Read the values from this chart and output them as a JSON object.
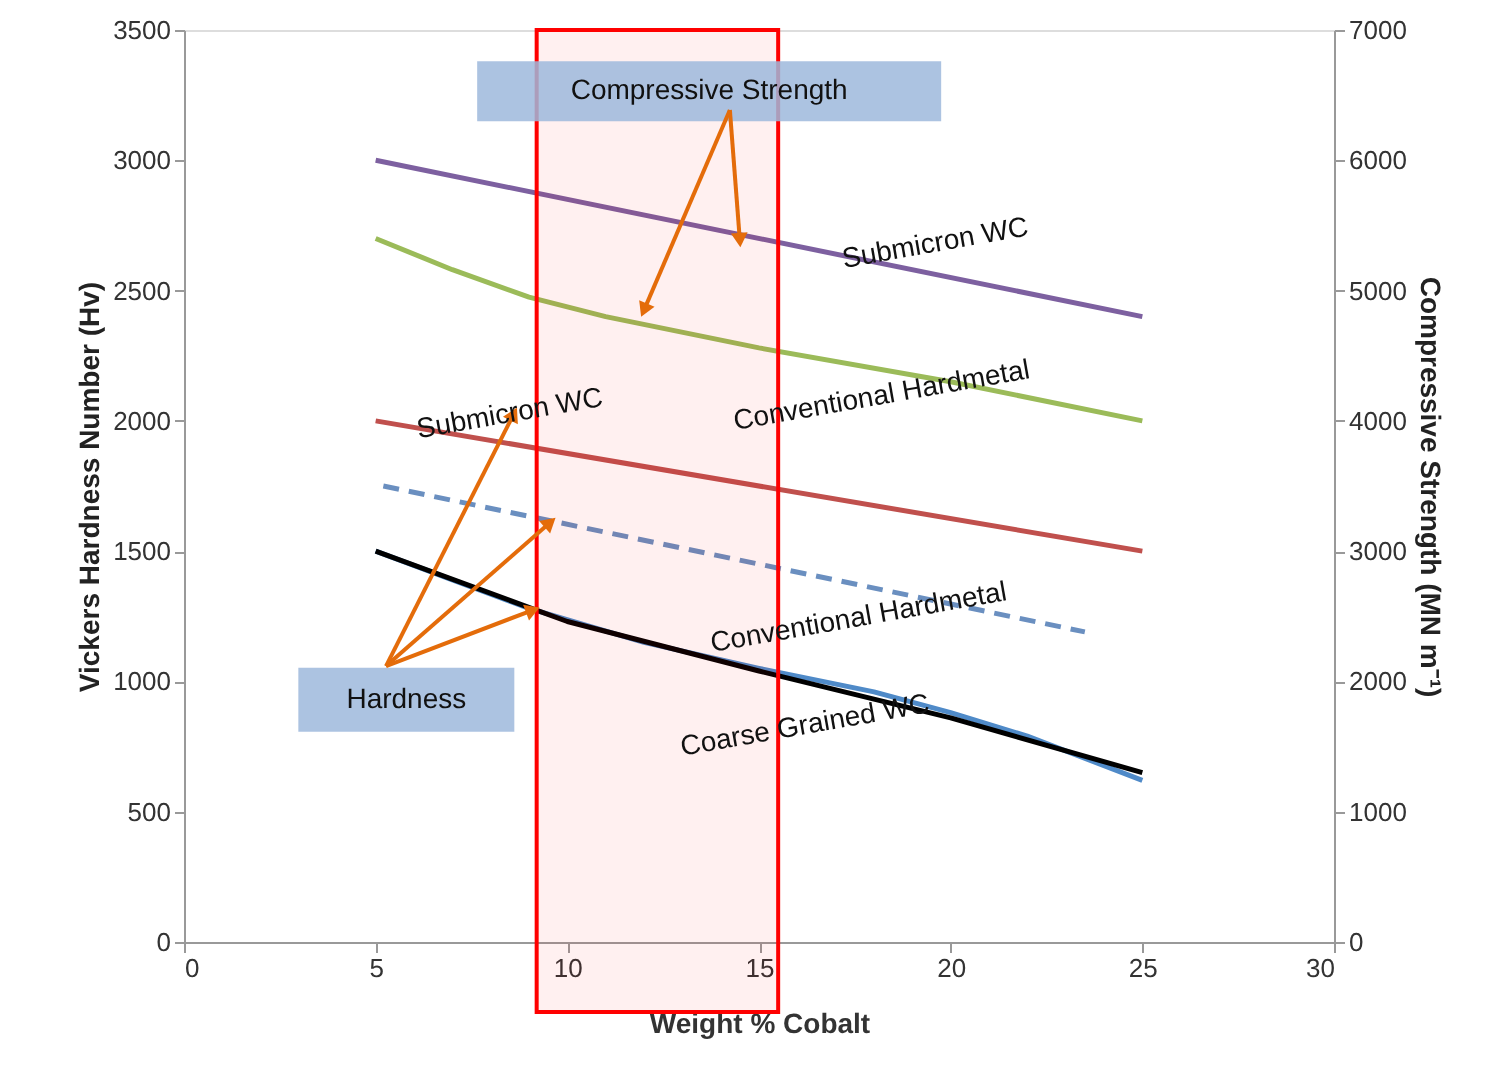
{
  "chart_data": {
    "type": "line",
    "xlabel": "Weight % Cobalt",
    "ylabel": "Vickers Hardness Number (Hv)",
    "y2label": "Compressive Strength (MN m⁻¹)",
    "xlim": [
      0,
      30
    ],
    "xticks": [
      0,
      5,
      10,
      15,
      20,
      25,
      30
    ],
    "ylim": [
      0,
      3500
    ],
    "yticks": [
      0,
      500,
      1000,
      1500,
      2000,
      2500,
      3000,
      3500
    ],
    "y2lim": [
      0,
      7000
    ],
    "y2ticks": [
      0,
      1000,
      2000,
      3000,
      4000,
      5000,
      6000,
      7000
    ],
    "grid": false,
    "legend": false,
    "series": [
      {
        "color": "#7d60a0",
        "axis": "y2",
        "x": [
          5,
          25
        ],
        "values": [
          6000,
          4800
        ]
      },
      {
        "color": "#9bbb59",
        "axis": "y2",
        "x": [
          5,
          7,
          9,
          11,
          15,
          20,
          25
        ],
        "values": [
          5400,
          5160,
          4950,
          4800,
          4560,
          4300,
          4000
        ]
      },
      {
        "color": "#c0504d",
        "x": [
          5,
          25
        ],
        "values": [
          2000,
          1500
        ]
      },
      {
        "color": "#6a8fc0",
        "line_style": "dashed",
        "x": [
          5.2,
          23.5
        ],
        "values": [
          1750,
          1190
        ]
      },
      {
        "color": "#4f8ac8",
        "x": [
          5,
          7,
          9,
          12,
          15,
          18,
          20,
          22,
          25
        ],
        "values": [
          1500,
          1390,
          1280,
          1150,
          1050,
          960,
          880,
          790,
          620
        ]
      },
      {
        "color": "#000000",
        "x": [
          5,
          10,
          15,
          20,
          25
        ],
        "values": [
          1500,
          1230,
          1040,
          860,
          650
        ]
      }
    ],
    "bands": [
      {
        "axis": "x",
        "from": 9.2,
        "to": 15.5,
        "color": "#ff0000"
      }
    ],
    "annotations": [
      "Submicron WC",
      "Conventional Hardmetal",
      "Submicron WC",
      "Conventional Hardmetal",
      "Coarse Grained WC",
      {
        "text": "Compressive Strength",
        "x": 14.5,
        "y": 2694
      },
      {
        "text": "Hardness",
        "x": 9.55,
        "y": 1610
      }
    ]
  }
}
